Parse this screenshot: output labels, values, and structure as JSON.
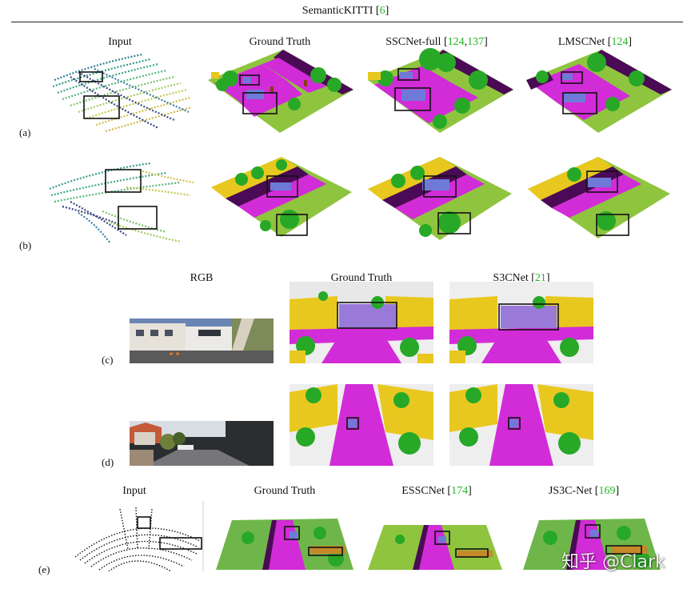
{
  "figure": {
    "kitti_title": "SemanticKITTI",
    "kitti_ref": "6",
    "headers_kitti": [
      {
        "text": "Input",
        "refs": []
      },
      {
        "text": "Ground Truth",
        "refs": []
      },
      {
        "text": "SSCNet-full",
        "refs": [
          "124",
          "137"
        ]
      },
      {
        "text": "LMSCNet",
        "refs": [
          "124"
        ]
      }
    ],
    "headers_rgb": [
      {
        "text": "RGB",
        "refs": []
      },
      {
        "text": "Ground Truth",
        "refs": []
      },
      {
        "text": "S3CNet",
        "refs": [
          "21"
        ]
      }
    ],
    "headers_last": [
      {
        "text": "Input",
        "refs": []
      },
      {
        "text": "Ground Truth",
        "refs": []
      },
      {
        "text": "ESSCNet",
        "refs": [
          "174"
        ]
      },
      {
        "text": "JS3C-Net",
        "refs": [
          "169"
        ]
      }
    ],
    "row_labels": [
      "(a)",
      "(b)",
      "(c)",
      "(d)",
      "(e)"
    ],
    "watermark": "知乎 @Clark"
  },
  "colors": {
    "road": "#d22bd8",
    "vegetation": "#27a827",
    "terrain": "#8fc43f",
    "building": "#e8c81e",
    "car": "#6f7ad8",
    "sidewalk": "#4b0a55",
    "trunk": "#8a3a1e",
    "citation": "#22b422"
  }
}
